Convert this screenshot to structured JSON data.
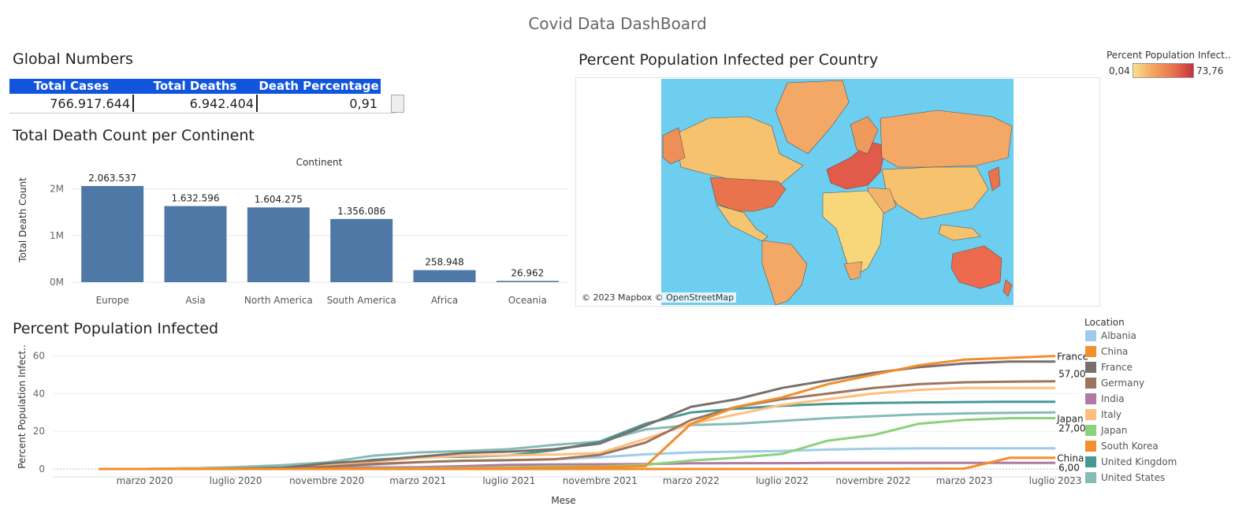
{
  "dashboard": {
    "title": "Covid Data DashBoard"
  },
  "global_numbers": {
    "title": "Global Numbers",
    "headers": [
      "Total Cases",
      "Total Deaths",
      "Death Percentage"
    ],
    "values": [
      "766.917.644",
      "6.942.404",
      "0,91"
    ]
  },
  "map": {
    "title": "Percent Population Infected per Country",
    "credit": "© 2023 Mapbox © OpenStreetMap",
    "legend_title": "Percent Population Infect..",
    "legend_min": "0,04",
    "legend_max": "73,76",
    "colors": {
      "low": "#fbe08a",
      "mid": "#f4a460",
      "high": "#c8313f",
      "ocean": "#6ecef0"
    }
  },
  "continent_chart": {
    "section_title": "Total Death Count per Continent"
  },
  "infected_chart": {
    "section_title": "Percent Population Infected",
    "legend_title": "Location"
  },
  "chart_data": [
    {
      "type": "bar",
      "title": "Total Death Count per Continent",
      "xlabel": "Continent",
      "ylabel": "Total Death Count",
      "categories": [
        "Europe",
        "Asia",
        "North America",
        "South America",
        "Africa",
        "Oceania"
      ],
      "values": [
        2063537,
        1632596,
        1604275,
        1356086,
        258948,
        26962
      ],
      "value_labels": [
        "2.063.537",
        "1.632.596",
        "1.604.275",
        "1.356.086",
        "258.948",
        "26.962"
      ],
      "ylim": [
        0,
        2300000
      ],
      "yticks": [
        0,
        1000000,
        2000000
      ],
      "ytick_labels": [
        "0M",
        "1M",
        "2M"
      ],
      "color": "#4e79a7",
      "grid": true
    },
    {
      "type": "line",
      "title": "Percent Population Infected",
      "xlabel": "Mese",
      "ylabel": "Percent Population Infect..",
      "xlim": [
        "2020-01",
        "2023-07"
      ],
      "ylim": [
        0,
        64
      ],
      "yticks": [
        0,
        20,
        40,
        60
      ],
      "xticks": [
        {
          "x": "2020-03",
          "label": "marzo 2020"
        },
        {
          "x": "2020-07",
          "label": "luglio 2020"
        },
        {
          "x": "2020-11",
          "label": "novembre 2020"
        },
        {
          "x": "2021-03",
          "label": "marzo 2021"
        },
        {
          "x": "2021-07",
          "label": "luglio 2021"
        },
        {
          "x": "2021-11",
          "label": "novembre 2021"
        },
        {
          "x": "2022-03",
          "label": "marzo 2022"
        },
        {
          "x": "2022-07",
          "label": "luglio 2022"
        },
        {
          "x": "2022-11",
          "label": "novembre 2022"
        },
        {
          "x": "2023-03",
          "label": "marzo 2023"
        },
        {
          "x": "2023-07",
          "label": "luglio 2023"
        }
      ],
      "x": [
        "2020-01",
        "2020-03",
        "2020-05",
        "2020-07",
        "2020-09",
        "2020-11",
        "2021-01",
        "2021-03",
        "2021-05",
        "2021-07",
        "2021-09",
        "2021-11",
        "2022-01",
        "2022-03",
        "2022-05",
        "2022-07",
        "2022-09",
        "2022-11",
        "2023-01",
        "2023-03",
        "2023-05",
        "2023-07"
      ],
      "series": [
        {
          "name": "Albania",
          "color": "#a0cbe8",
          "values": [
            0,
            0,
            0,
            0.1,
            0.4,
            1.1,
            2.2,
            3.6,
            4.3,
            4.6,
            5.2,
            6.2,
            7.8,
            8.8,
            9.2,
            9.6,
            10.3,
            10.8,
            10.9,
            11.0,
            11.0,
            11.0
          ]
        },
        {
          "name": "China",
          "color": "#f28e2b",
          "values": [
            0,
            0,
            0,
            0,
            0,
            0,
            0,
            0,
            0,
            0,
            0,
            0,
            0,
            0,
            0,
            0,
            0,
            0,
            0.1,
            0.2,
            6.0,
            6.0
          ]
        },
        {
          "name": "France",
          "color": "#79706e",
          "values": [
            0,
            0,
            0,
            0.1,
            0.5,
            3.0,
            4.5,
            6.5,
            8.5,
            9.2,
            10.5,
            13.5,
            23.0,
            33.0,
            37.0,
            43.0,
            47.0,
            51.0,
            54.0,
            56.0,
            57.0,
            57.0
          ]
        },
        {
          "name": "Germany",
          "color": "#9c755f",
          "values": [
            0,
            0,
            0,
            0.1,
            0.3,
            1.2,
            2.6,
            3.6,
            4.4,
            4.7,
            5.2,
            7.5,
            14.0,
            26.0,
            33.0,
            37.0,
            40.0,
            43.0,
            45.0,
            46.0,
            46.3,
            46.5
          ]
        },
        {
          "name": "India",
          "color": "#b07aa1",
          "values": [
            0,
            0,
            0,
            0.1,
            0.4,
            0.7,
            0.8,
            0.9,
            1.5,
            2.2,
            2.4,
            2.5,
            2.6,
            3.0,
            3.1,
            3.1,
            3.2,
            3.2,
            3.2,
            3.2,
            3.2,
            3.2
          ]
        },
        {
          "name": "Italy",
          "color": "#ffbe7d",
          "values": [
            0,
            0,
            0.3,
            0.4,
            0.5,
            2.0,
            3.8,
            5.8,
            7.0,
            7.2,
            7.6,
            8.5,
            16.0,
            24.0,
            29.0,
            34.0,
            37.0,
            40.0,
            42.0,
            43.0,
            43.0,
            43.0
          ]
        },
        {
          "name": "Japan",
          "color": "#8cd17d",
          "values": [
            0,
            0,
            0,
            0,
            0.1,
            0.1,
            0.3,
            0.4,
            0.6,
            0.9,
            1.3,
            1.4,
            2.2,
            4.5,
            6.0,
            8.0,
            15.0,
            18.0,
            24.0,
            26.0,
            27.0,
            27.0
          ]
        },
        {
          "name": "South Korea",
          "color": "#f28e2b",
          "values": [
            0,
            0,
            0,
            0,
            0,
            0.1,
            0.2,
            0.2,
            0.3,
            0.4,
            0.7,
            1.0,
            1.5,
            24.0,
            33.0,
            38.0,
            45.0,
            50.0,
            55.0,
            58.0,
            59.0,
            60.0
          ]
        },
        {
          "name": "United Kingdom",
          "color": "#499894",
          "values": [
            0,
            0,
            0.4,
            0.5,
            0.7,
            2.0,
            4.8,
            6.3,
            6.5,
            7.2,
            10.0,
            14.5,
            24.0,
            30.0,
            32.0,
            33.5,
            34.5,
            35.0,
            35.3,
            35.5,
            35.7,
            35.7
          ]
        },
        {
          "name": "United States",
          "color": "#86bcb6",
          "values": [
            0,
            0,
            0.3,
            1.0,
            2.0,
            3.5,
            7.0,
            8.8,
            9.5,
            10.5,
            12.8,
            14.5,
            21.0,
            23.3,
            24.0,
            25.5,
            27.0,
            28.0,
            29.0,
            29.5,
            29.8,
            30.0
          ]
        }
      ],
      "end_labels": [
        {
          "series": "South Korea",
          "name": "France"
        },
        {
          "series": "France",
          "value": "57,00"
        },
        {
          "series": "Japan",
          "name": "Japan",
          "value": "27,00"
        },
        {
          "series": "China",
          "name": "China",
          "value": "6,00"
        }
      ],
      "legend_position": "right",
      "grid": true
    }
  ]
}
